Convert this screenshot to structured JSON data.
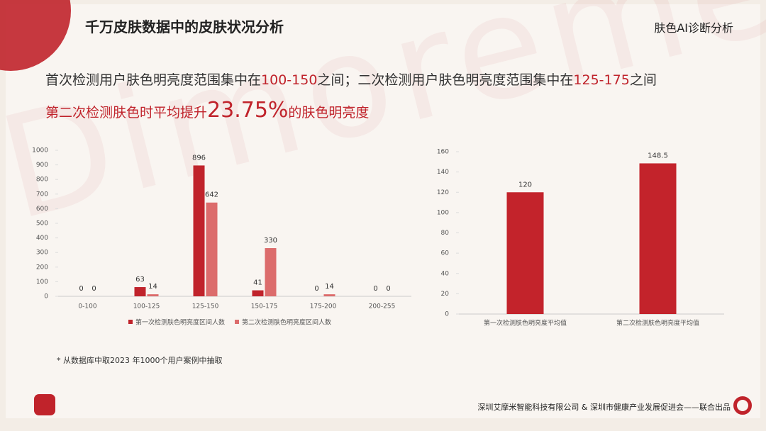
{
  "header": {
    "title": "千万皮肤数据中的皮肤状况分析",
    "section": "肤色AI诊断分析"
  },
  "watermark": "Dimoreme",
  "headline": {
    "line1": [
      "首次检测用户肤色明亮度范围集中在",
      "100-150",
      "之间；二次检测用户肤色明亮度范围集中在",
      "125-175",
      "之间"
    ],
    "line2": [
      "第二次检测肤色时平均提升",
      "23.75%",
      "的肤色明亮度"
    ]
  },
  "chart_data": [
    {
      "type": "bar",
      "categories": [
        "0-100",
        "100-125",
        "125-150",
        "150-175",
        "175-200",
        "200-255"
      ],
      "series": [
        {
          "name": "第一次检测肤色明亮度区间人数",
          "color": "#c0232b",
          "values": [
            0,
            63,
            896,
            41,
            0,
            0
          ]
        },
        {
          "name": "第二次检测肤色明亮度区间人数",
          "color": "#dc6c6c",
          "values": [
            0,
            14,
            642,
            330,
            14,
            0
          ]
        }
      ],
      "ylim": [
        0,
        1000
      ],
      "yticks": [
        0,
        100,
        200,
        300,
        400,
        500,
        600,
        700,
        800,
        900,
        1000
      ],
      "legend": "bottom"
    },
    {
      "type": "bar",
      "categories": [
        "第一次检测肤色明亮度平均值",
        "第二次检测肤色明亮度平均值"
      ],
      "series": [
        {
          "color": "#c3232b",
          "values": [
            120,
            148.5
          ]
        }
      ],
      "ylim": [
        0,
        160
      ],
      "yticks": [
        0,
        20,
        40,
        60,
        80,
        100,
        120,
        140,
        160
      ]
    }
  ],
  "footnote": "* 从数据库中取2023 年1000个用户案例中抽取",
  "footer": "深圳艾摩米智能科技有限公司 & 深圳市健康产业发展促进会——联合出品"
}
